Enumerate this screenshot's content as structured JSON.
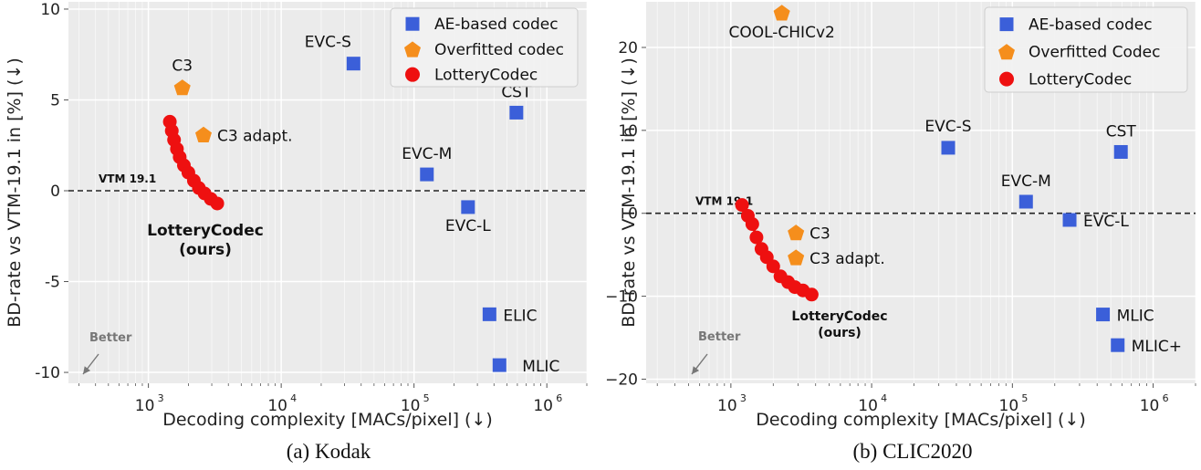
{
  "captions": [
    "(a) Kodak",
    "(b) CLIC2020"
  ],
  "colors": {
    "panel_bg": "#ebebeb",
    "grid": "#ffffff",
    "ae": "#3b5fd9",
    "overfitted": "#f58e1c",
    "lottery": "#ee1010",
    "ref_line": "#222222",
    "better": "#777777"
  },
  "chart_data": [
    {
      "type": "scatter",
      "xscale": "log",
      "xlim": [
        250,
        2000000
      ],
      "ylim": [
        -10.6,
        10.4
      ],
      "yticks": [
        10,
        5,
        0,
        -5,
        -10
      ],
      "ytick_labels": [
        "10",
        "5",
        "0",
        "-5",
        "-10"
      ],
      "xticks": [
        1000,
        10000,
        100000,
        1000000
      ],
      "xtick_labels": [
        "10",
        "10",
        "10",
        "10"
      ],
      "xtick_exponents": [
        "3",
        "4",
        "5",
        "6"
      ],
      "xlabel": "Decoding complexity [MACs/pixel] (↓)",
      "ylabel": "BD-rate vs VTM-19.1 in [%] (↓)",
      "legend_position": "top-right",
      "legend": [
        "AE-based codec",
        "Overfitted codec",
        "LotteryCodec"
      ],
      "reference_line": {
        "y": 0,
        "label": "VTM 19.1"
      },
      "better_label": "Better",
      "ae_points": [
        {
          "label": "EVC-S",
          "x": 35000,
          "y": 7.0
        },
        {
          "label": "CST",
          "x": 590000,
          "y": 4.3
        },
        {
          "label": "EVC-M",
          "x": 125000,
          "y": 0.9
        },
        {
          "label": "EVC-L",
          "x": 255000,
          "y": -0.9
        },
        {
          "label": "ELIC",
          "x": 370000,
          "y": -6.8
        },
        {
          "label": "MLIC",
          "x": 440000,
          "y": -9.6
        }
      ],
      "overfitted_points": [
        {
          "label": "C3",
          "x": 1800,
          "y": 5.7
        },
        {
          "label": "C3 adapt.",
          "x": 2600,
          "y": 3.1
        }
      ],
      "lottery_curve": {
        "label_line1": "LotteryCodec",
        "label_line2": "(ours)",
        "x": [
          1450,
          1500,
          1560,
          1640,
          1720,
          1850,
          2000,
          2200,
          2400,
          2650,
          2950,
          3300
        ],
        "y": [
          3.8,
          3.3,
          2.8,
          2.3,
          1.85,
          1.4,
          1.0,
          0.55,
          0.15,
          -0.15,
          -0.45,
          -0.7
        ]
      }
    },
    {
      "type": "scatter",
      "xscale": "log",
      "xlim": [
        250,
        2000000
      ],
      "ylim": [
        -20.5,
        25.5
      ],
      "yticks": [
        20,
        10,
        0,
        -10,
        -20
      ],
      "ytick_labels": [
        "20",
        "10",
        "0",
        "−10",
        "−20"
      ],
      "xticks": [
        1000,
        10000,
        100000,
        1000000
      ],
      "xtick_labels": [
        "10",
        "10",
        "10",
        "10"
      ],
      "xtick_exponents": [
        "3",
        "4",
        "5",
        "6"
      ],
      "xlabel": "Decoding complexity [MACs/pixel] (↓)",
      "ylabel": "BD-rate vs VTM-19.1 in [%] (↓)",
      "legend_position": "top-right",
      "legend": [
        "AE-based codec",
        "Overfitted Codec",
        "LotteryCodec"
      ],
      "reference_line": {
        "y": 0,
        "label": "VTM 19.1"
      },
      "better_label": "Better",
      "ae_points": [
        {
          "label": "EVC-S",
          "x": 35000,
          "y": 7.9
        },
        {
          "label": "CST",
          "x": 590000,
          "y": 7.4
        },
        {
          "label": "EVC-M",
          "x": 125000,
          "y": 1.4
        },
        {
          "label": "EVC-L",
          "x": 255000,
          "y": -0.8
        },
        {
          "label": "MLIC",
          "x": 440000,
          "y": -12.2
        },
        {
          "label": "MLIC+",
          "x": 560000,
          "y": -15.9
        }
      ],
      "overfitted_points": [
        {
          "label": "COOL-CHICv2",
          "x": 2300,
          "y": 24.2
        },
        {
          "label": "C3",
          "x": 2900,
          "y": -2.3
        },
        {
          "label": "C3 adapt.",
          "x": 2900,
          "y": -5.3
        }
      ],
      "lottery_curve": {
        "label_line1": "LotteryCodec",
        "label_line2": "(ours)",
        "x": [
          1200,
          1320,
          1420,
          1520,
          1650,
          1800,
          2000,
          2250,
          2550,
          2850,
          3250,
          3750
        ],
        "y": [
          1.0,
          -0.3,
          -1.3,
          -2.9,
          -4.3,
          -5.3,
          -6.4,
          -7.6,
          -8.3,
          -8.9,
          -9.3,
          -9.8
        ]
      }
    }
  ]
}
